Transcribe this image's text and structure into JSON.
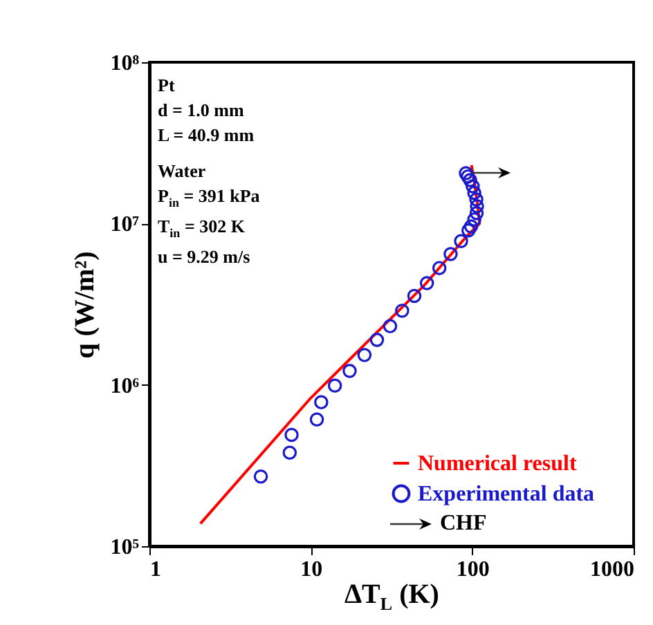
{
  "chart_data": {
    "type": "scatter",
    "xlabel": "ΔT$_{L}$ (K)",
    "ylabel": "q (W/m²)",
    "log": "xy",
    "xlim": [
      1,
      1000
    ],
    "xticks": [
      1,
      10,
      100,
      {
        "value": 1000,
        "label": "1000"
      }
    ],
    "ylim": [
      100000,
      100000000
    ],
    "yticks": [
      {
        "value": 100000,
        "label": "10⁵"
      },
      {
        "value": 1000000,
        "label": "10⁶"
      },
      {
        "value": 10000000,
        "label": "10⁷"
      },
      {
        "value": 100000000,
        "label": "10⁸"
      }
    ],
    "grid": false,
    "legend": "bottom right",
    "series": [
      {
        "name": "Numerical result",
        "type": "line",
        "color": "#ff0000",
        "line_style": "solid",
        "x": [
          2.07,
          10,
          50,
          90,
          111,
          108,
          104,
          99
        ],
        "values": [
          138000,
          830000,
          4100000,
          8100000,
          10000000,
          13000000,
          17000000,
          23000000
        ]
      },
      {
        "name": "Experimental data",
        "color": "#1a1acc",
        "marker": "circle",
        "x": [
          4.9,
          7.4,
          7.6,
          10.9,
          11.6,
          14.1,
          17.4,
          21.5,
          25.7,
          31,
          36.8,
          43.8,
          52.4,
          62.6,
          73.5,
          85.3,
          94.8,
          98.4,
          103,
          106.5,
          107,
          106,
          103,
          100.7,
          97,
          94,
          91.4
        ],
        "values": [
          270000,
          380000,
          490000,
          610000,
          780000,
          990000,
          1220000,
          1530000,
          1900000,
          2310000,
          2880000,
          3560000,
          4270000,
          5300000,
          6470000,
          7780000,
          9060000,
          9600000,
          10600000,
          11600000,
          12800000,
          14100000,
          15500000,
          17000000,
          18600000,
          19600000,
          20500000
        ]
      }
    ],
    "annotations": [
      "Pt",
      "d = 1.0 mm",
      "L = 40.9 mm",
      "Water",
      "P$_{in}$ = 391 kPa",
      "T$_{in}$ = 302 K",
      "u = 9.29 m/s",
      "CHF"
    ]
  }
}
